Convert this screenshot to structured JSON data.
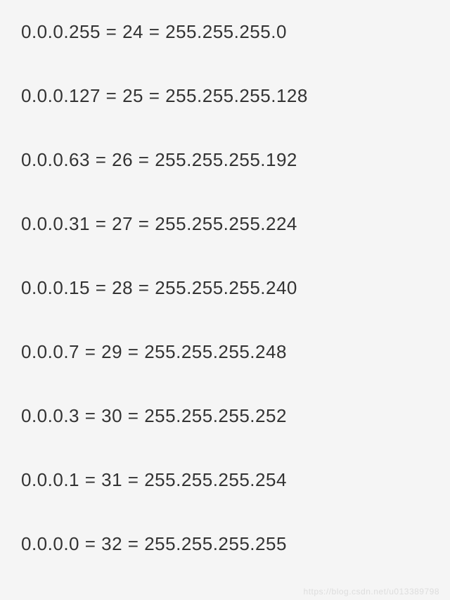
{
  "lines": [
    {
      "wildcard": "0.0.0.255",
      "cidr": "24",
      "netmask": "255.255.255.0"
    },
    {
      "wildcard": "0.0.0.127",
      "cidr": "25",
      "netmask": "255.255.255.128"
    },
    {
      "wildcard": "0.0.0.63",
      "cidr": "26",
      "netmask": "255.255.255.192"
    },
    {
      "wildcard": "0.0.0.31",
      "cidr": "27",
      "netmask": "255.255.255.224"
    },
    {
      "wildcard": "0.0.0.15",
      "cidr": "28",
      "netmask": "255.255.255.240"
    },
    {
      "wildcard": "0.0.0.7",
      "cidr": "29",
      "netmask": "255.255.255.248"
    },
    {
      "wildcard": "0.0.0.3",
      "cidr": "30",
      "netmask": "255.255.255.252"
    },
    {
      "wildcard": "0.0.0.1",
      "cidr": "31",
      "netmask": "255.255.255.254"
    },
    {
      "wildcard": "0.0.0.0",
      "cidr": "32",
      "netmask": "255.255.255.255"
    }
  ],
  "separator": " = ",
  "watermark": "https://blog.csdn.net/u013389798",
  "styling": {
    "background_color": "#f5f5f5",
    "text_color": "#333333",
    "font_size": 26,
    "line_spacing": 60,
    "watermark_color": "#dddddd",
    "watermark_fontsize": 12
  }
}
